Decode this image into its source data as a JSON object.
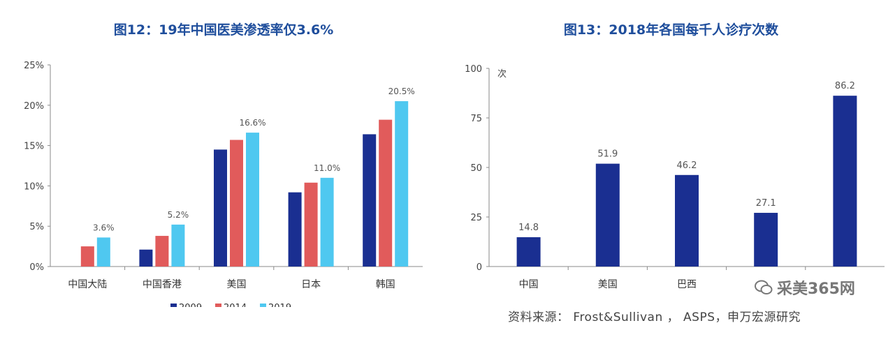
{
  "chart_data": [
    {
      "type": "bar",
      "title": "图12：19年中国医美渗透率仅3.6%",
      "categories": [
        "中国大陆",
        "中国香港",
        "美国",
        "日本",
        "韩国"
      ],
      "series": [
        {
          "name": "2009",
          "color": "#1a2f91",
          "values": [
            null,
            2.1,
            14.5,
            9.2,
            16.4
          ]
        },
        {
          "name": "2014",
          "color": "#e15b5b",
          "values": [
            2.5,
            3.8,
            15.7,
            10.4,
            18.2
          ]
        },
        {
          "name": "2019",
          "color": "#4fc8f0",
          "values": [
            3.6,
            5.2,
            16.6,
            11.0,
            20.5
          ]
        }
      ],
      "data_labels": [
        {
          "series": "2019",
          "category": "中国大陆",
          "text": "3.6%",
          "value": 3.6
        },
        {
          "series": "2019",
          "category": "中国香港",
          "text": "5.2%",
          "value": 5.2
        },
        {
          "series": "2019",
          "category": "美国",
          "text": "16.6%",
          "value": 16.6
        },
        {
          "series": "2019",
          "category": "日本",
          "text": "11.0%",
          "value": 11.0
        },
        {
          "series": "2019",
          "category": "韩国",
          "text": "20.5%",
          "value": 20.5
        }
      ],
      "yticks": [
        "0%",
        "5%",
        "10%",
        "15%",
        "20%",
        "25%"
      ],
      "ylim": [
        0,
        25
      ],
      "legend": [
        "2009",
        "2014",
        "2019"
      ],
      "legend_position": "bottom",
      "grid": false
    },
    {
      "type": "bar",
      "title": "图13：2018年各国每千人诊疗次数",
      "unit": "次",
      "categories": [
        "中国",
        "美国",
        "巴西",
        "",
        ""
      ],
      "series": [
        {
          "color": "#1a2f91",
          "values": [
            14.8,
            51.9,
            46.2,
            27.1,
            86.2
          ]
        }
      ],
      "data_labels": [
        "14.8",
        "51.9",
        "46.2",
        "27.1",
        "86.2"
      ],
      "yticks": [
        "0",
        "25",
        "50",
        "75",
        "100"
      ],
      "ylim": [
        0,
        100
      ],
      "grid": false
    }
  ],
  "footer": {
    "source": "资料来源： Frost&Sullivan ， ASPS，申万宏源研究",
    "watermark": "采美365网"
  }
}
